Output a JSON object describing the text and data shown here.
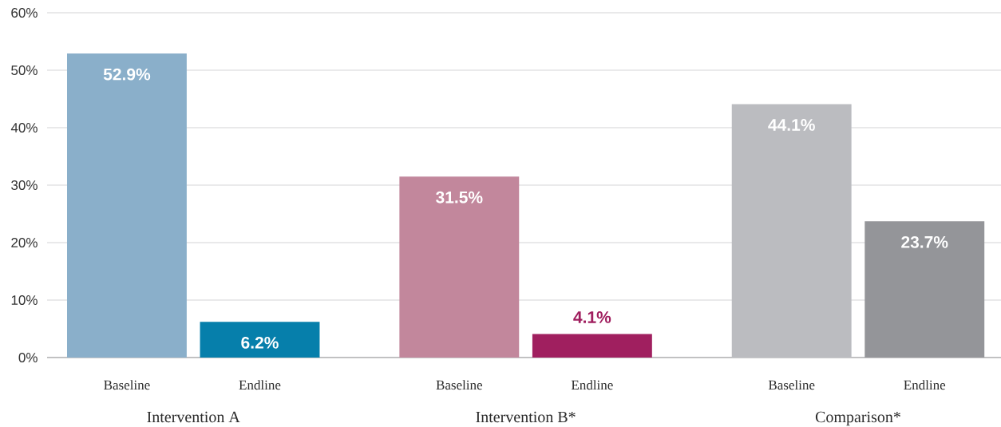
{
  "chart_data": {
    "type": "bar",
    "categories": [
      "Intervention A",
      "Intervention B*",
      "Comparison*"
    ],
    "series": [
      {
        "name": "Baseline",
        "colors": [
          "#8aafca",
          "#c2879c",
          "#bbbcc0"
        ],
        "values": [
          52.9,
          31.5,
          44.1
        ],
        "value_labels": [
          "52.9%",
          "31.5%",
          "44.1%"
        ]
      },
      {
        "name": "Endline",
        "colors": [
          "#067fab",
          "#a01f5f",
          "#949599"
        ],
        "values": [
          6.2,
          4.1,
          23.7
        ],
        "value_labels": [
          "6.2%",
          "4.1%",
          "23.7%"
        ]
      }
    ],
    "ylim": [
      0,
      60
    ],
    "yticks": [
      {
        "value": 0,
        "label": "0%"
      },
      {
        "value": 10,
        "label": "10%"
      },
      {
        "value": 20,
        "label": "20%"
      },
      {
        "value": 30,
        "label": "30%"
      },
      {
        "value": 40,
        "label": "40%"
      },
      {
        "value": 50,
        "label": "50%"
      },
      {
        "value": 60,
        "label": "60%"
      }
    ],
    "grid": "y"
  }
}
